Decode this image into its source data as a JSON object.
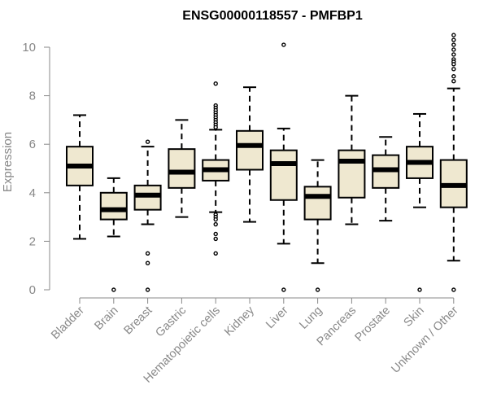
{
  "chart_data": {
    "type": "boxplot",
    "title": "ENSG00000118557 - PMFBP1",
    "xlabel": "",
    "ylabel": "Expression",
    "ylim": [
      0,
      10.5
    ],
    "yticks": [
      0,
      2,
      4,
      6,
      8,
      10
    ],
    "box_fill": "#efe8d0",
    "box_stroke": "#000000",
    "axis_color": "#888888",
    "categories": [
      "Bladder",
      "Brain",
      "Breast",
      "Gastric",
      "Hematopoietic cells",
      "Kidney",
      "Liver",
      "Lung",
      "Pancreas",
      "Prostate",
      "Skin",
      "Unknown / Other"
    ],
    "boxes": [
      {
        "whisker_low": 2.1,
        "q1": 4.3,
        "median": 5.1,
        "q3": 5.9,
        "whisker_high": 7.2,
        "outliers": []
      },
      {
        "whisker_low": 2.2,
        "q1": 2.9,
        "median": 3.3,
        "q3": 4.0,
        "whisker_high": 4.6,
        "outliers": [
          0.0
        ]
      },
      {
        "whisker_low": 2.7,
        "q1": 3.3,
        "median": 3.9,
        "q3": 4.3,
        "whisker_high": 5.9,
        "outliers": [
          6.1,
          1.5,
          1.1,
          0.0
        ]
      },
      {
        "whisker_low": 3.0,
        "q1": 4.2,
        "median": 4.85,
        "q3": 5.8,
        "whisker_high": 7.0,
        "outliers": []
      },
      {
        "whisker_low": 3.2,
        "q1": 4.5,
        "median": 4.95,
        "q3": 5.35,
        "whisker_high": 6.6,
        "outliers": [
          8.5,
          7.6,
          7.5,
          7.4,
          7.3,
          7.2,
          7.1,
          7.0,
          6.9,
          6.8,
          6.7,
          3.1,
          3.0,
          2.9,
          2.7,
          2.3,
          2.1,
          1.5
        ]
      },
      {
        "whisker_low": 2.8,
        "q1": 4.95,
        "median": 5.95,
        "q3": 6.55,
        "whisker_high": 8.35,
        "outliers": []
      },
      {
        "whisker_low": 1.9,
        "q1": 3.7,
        "median": 5.2,
        "q3": 5.75,
        "whisker_high": 6.65,
        "outliers": [
          10.1,
          0.0
        ]
      },
      {
        "whisker_low": 1.1,
        "q1": 2.9,
        "median": 3.85,
        "q3": 4.25,
        "whisker_high": 5.35,
        "outliers": [
          0.0
        ]
      },
      {
        "whisker_low": 2.7,
        "q1": 3.8,
        "median": 5.3,
        "q3": 5.75,
        "whisker_high": 8.0,
        "outliers": []
      },
      {
        "whisker_low": 2.85,
        "q1": 4.2,
        "median": 4.95,
        "q3": 5.55,
        "whisker_high": 6.3,
        "outliers": []
      },
      {
        "whisker_low": 3.4,
        "q1": 4.6,
        "median": 5.25,
        "q3": 5.9,
        "whisker_high": 7.25,
        "outliers": [
          0.0
        ]
      },
      {
        "whisker_low": 1.2,
        "q1": 3.4,
        "median": 4.3,
        "q3": 5.35,
        "whisker_high": 8.3,
        "outliers": [
          10.5,
          10.3,
          10.1,
          9.9,
          9.7,
          9.5,
          9.4,
          9.3,
          9.1,
          8.8,
          8.6,
          0.0
        ]
      }
    ]
  }
}
